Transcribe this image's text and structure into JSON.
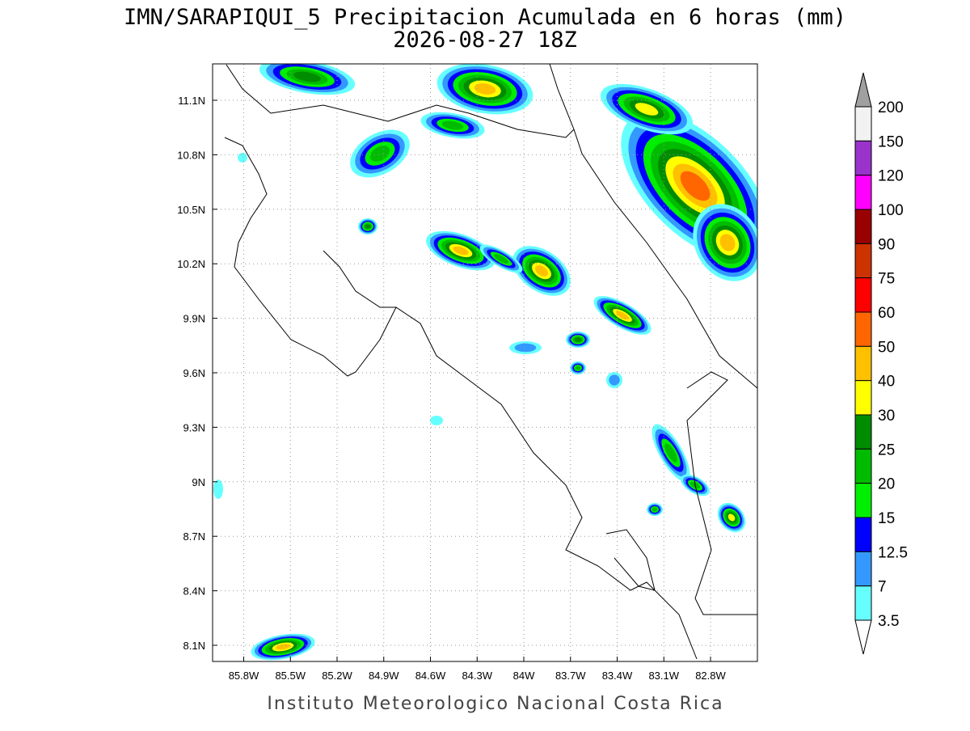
{
  "header": {
    "title": "IMN/SARAPIQUI_5 Precipitacion Acumulada en 6 horas (mm)",
    "subtitle": "2026-08-27 18Z"
  },
  "map": {
    "lon_ticks": [
      "85.8W",
      "85.5W",
      "85.2W",
      "84.9W",
      "84.6W",
      "84.3W",
      "84W",
      "83.7W",
      "83.4W",
      "83.1W",
      "82.8W"
    ],
    "lat_ticks": [
      "11.1N",
      "10.8N",
      "10.5N",
      "10.2N",
      "9.9N",
      "9.6N",
      "9.3N",
      "9N",
      "8.7N",
      "8.4N",
      "8.1N"
    ]
  },
  "colorbar": {
    "labels": [
      "200",
      "150",
      "120",
      "100",
      "90",
      "75",
      "60",
      "50",
      "40",
      "30",
      "25",
      "20",
      "15",
      "12.5",
      "7",
      "3.5"
    ],
    "band_colors": [
      "#f2f2f2",
      "#9933cc",
      "#ff00ff",
      "#990000",
      "#cc3300",
      "#ff0000",
      "#ff6600",
      "#ffc000",
      "#ffff00",
      "#008c00",
      "#00bb00",
      "#00ee00",
      "#0000ff",
      "#3399ff",
      "#66ffff"
    ],
    "over_color": "#a0a0a0",
    "under_color": "#ffffff"
  },
  "footer": "Instituto Meteorologico Nacional Costa Rica"
}
